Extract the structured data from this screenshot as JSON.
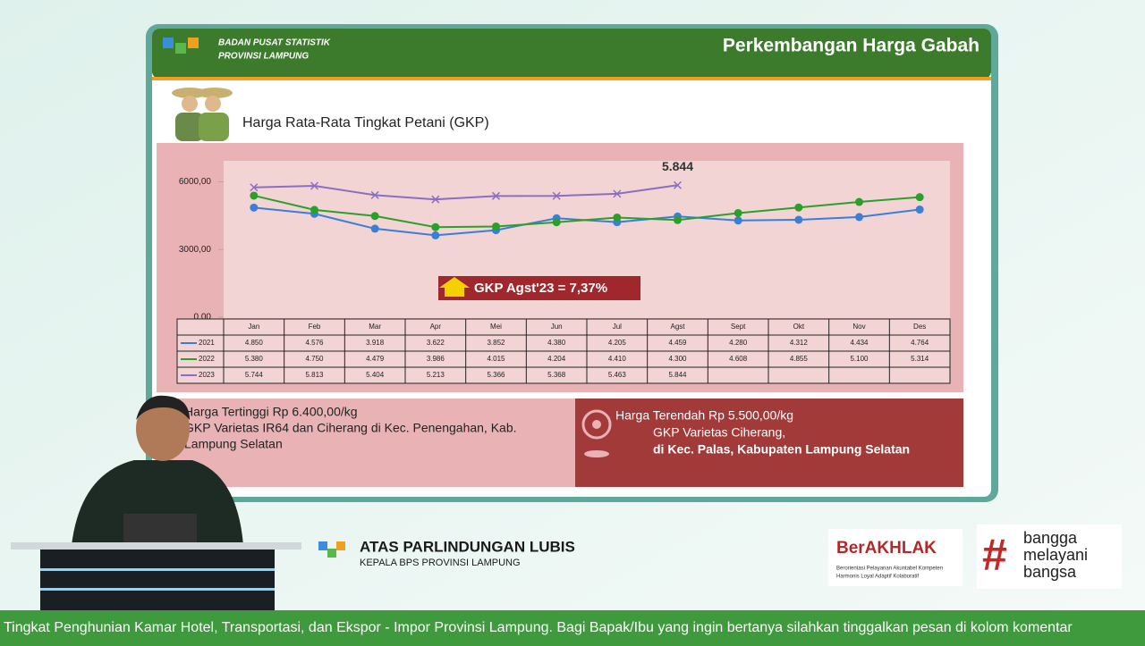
{
  "slide": {
    "org_line1": "BADAN PUSAT STATISTIK",
    "org_line2": "PROVINSI LAMPUNG",
    "heading": "Perkembangan Harga Gabah",
    "subheading": "Harga Rata-Rata Tingkat Petani (GKP)",
    "high_title": "Harga Tertinggi Rp 6.400,00/kg",
    "high_line1": "GKP Varietas  IR64 dan Ciherang di Kec. Penengahan, Kab.",
    "high_line2": "Lampung Selatan",
    "low_title": "Harga Terendah Rp 5.500,00/kg",
    "low_line1": "GKP Varietas Ciherang,",
    "low_line2": "di Kec. Palas, Kabupaten Lampung Selatan"
  },
  "chart_data": {
    "type": "line",
    "categories": [
      "Jan",
      "Feb",
      "Mar",
      "Apr",
      "Mei",
      "Jun",
      "Jul",
      "Agst",
      "Sept",
      "Okt",
      "Nov",
      "Des"
    ],
    "series": [
      {
        "name": "2021",
        "color": "#3a7fd5",
        "values": [
          4850,
          4576,
          3918,
          3622,
          3852,
          4380,
          4205,
          4459,
          4280,
          4312,
          4434,
          4764
        ],
        "value_labels": [
          "4.850",
          "4.576",
          "3.918",
          "3.622",
          "3.852",
          "4.380",
          "4.205",
          "4.459",
          "4.280",
          "4.312",
          "4.434",
          "4.764"
        ]
      },
      {
        "name": "2022",
        "color": "#2aa02a",
        "values": [
          5380,
          4750,
          4479,
          3986,
          4015,
          4204,
          4410,
          4300,
          4608,
          4855,
          5100,
          5314
        ],
        "value_labels": [
          "5.380",
          "4.750",
          "4.479",
          "3.986",
          "4.015",
          "4.204",
          "4.410",
          "4.300",
          "4.608",
          "4.855",
          "5.100",
          "5.314"
        ]
      },
      {
        "name": "2023",
        "color": "#8a6fc0",
        "values": [
          5744,
          5813,
          5404,
          5213,
          5366,
          5368,
          5463,
          5844,
          null,
          null,
          null,
          null
        ],
        "value_labels": [
          "5.744",
          "5.813",
          "5.404",
          "5.213",
          "5.366",
          "5.368",
          "5.463",
          "5.844",
          null,
          null,
          null,
          null
        ]
      }
    ],
    "ylim": [
      0,
      7000
    ],
    "yticks": [
      {
        "value": 0,
        "label": "0,00"
      },
      {
        "value": 3000,
        "label": "3000,00"
      },
      {
        "value": 6000,
        "label": "6000,00"
      }
    ],
    "annotations": [
      {
        "text": "5.844",
        "series": 2,
        "index": 7
      }
    ],
    "badge": "GKP Agst'23 = 7,37%"
  },
  "speaker": {
    "name": "ATAS PARLINDUNGAN LUBIS",
    "role": "KEPALA BPS PROVINSI LAMPUNG"
  },
  "logos": {
    "berakhlak": "BerAKHLAK",
    "berakhlak_sub1": "Berorientasi Pelayanan Akuntabel Kompeten",
    "berakhlak_sub2": "Harmonis Loyal Adaptif Kolaboratif",
    "bangga1": "bangga",
    "bangga2": "melayani",
    "bangga3": "bangsa"
  },
  "ticker": "Tingkat Penghunian Kamar Hotel, Transportasi, dan Ekspor - Impor Provinsi Lampung. Bagi Bapak/Ibu yang ingin bertanya silahkan tinggalkan pesan di kolom komentar"
}
